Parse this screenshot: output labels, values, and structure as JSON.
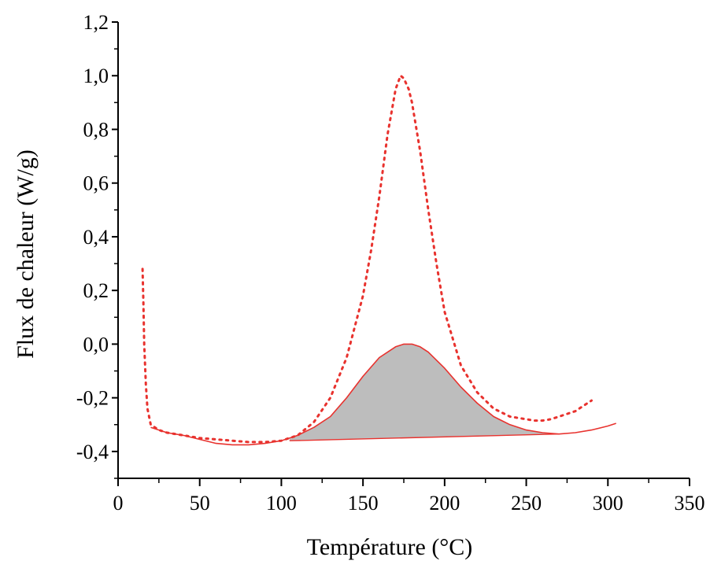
{
  "chart_data": {
    "type": "line",
    "title": "",
    "xlabel": "Température (°C)",
    "ylabel": "Flux de chaleur (W/g)",
    "xlim": [
      0,
      350
    ],
    "ylim": [
      -0.5,
      1.2
    ],
    "xticks": [
      0,
      50,
      100,
      150,
      200,
      250,
      300,
      350
    ],
    "xtick_labels": [
      "0",
      "50",
      "100",
      "150",
      "200",
      "250",
      "300",
      "350"
    ],
    "yticks": [
      -0.4,
      -0.2,
      0.0,
      0.2,
      0.4,
      0.6,
      0.8,
      1.0,
      1.2
    ],
    "ytick_labels": [
      "-0,4",
      "-0,2",
      "0,0",
      "0,2",
      "0,4",
      "0,6",
      "0,8",
      "1,0",
      "1,2"
    ],
    "grid": false,
    "legend": "none",
    "series": [
      {
        "style": "dotted",
        "color": "#e8322e",
        "x": [
          15,
          15.5,
          16,
          17,
          18,
          20,
          25,
          30,
          40,
          50,
          60,
          70,
          80,
          90,
          100,
          110,
          120,
          130,
          140,
          150,
          155,
          160,
          165,
          170,
          173,
          175,
          178,
          180,
          185,
          190,
          195,
          200,
          210,
          220,
          230,
          240,
          250,
          255,
          260,
          265,
          270,
          280,
          290
        ],
        "y": [
          0.28,
          0.15,
          0.0,
          -0.15,
          -0.24,
          -0.3,
          -0.32,
          -0.33,
          -0.34,
          -0.35,
          -0.355,
          -0.36,
          -0.365,
          -0.365,
          -0.36,
          -0.34,
          -0.29,
          -0.2,
          -0.05,
          0.18,
          0.35,
          0.55,
          0.78,
          0.95,
          1.0,
          0.99,
          0.95,
          0.9,
          0.72,
          0.5,
          0.3,
          0.12,
          -0.08,
          -0.18,
          -0.24,
          -0.27,
          -0.28,
          -0.285,
          -0.285,
          -0.28,
          -0.27,
          -0.25,
          -0.21
        ]
      },
      {
        "style": "solid",
        "color": "#e8322e",
        "x": [
          20,
          30,
          40,
          50,
          60,
          70,
          80,
          90,
          100,
          110,
          120,
          130,
          140,
          150,
          160,
          170,
          175,
          180,
          185,
          190,
          200,
          210,
          220,
          230,
          240,
          250,
          260,
          270,
          280,
          290,
          300,
          305
        ],
        "y": [
          -0.31,
          -0.33,
          -0.34,
          -0.355,
          -0.37,
          -0.375,
          -0.375,
          -0.37,
          -0.36,
          -0.34,
          -0.31,
          -0.27,
          -0.2,
          -0.12,
          -0.05,
          -0.01,
          0.0,
          0.0,
          -0.01,
          -0.03,
          -0.09,
          -0.16,
          -0.22,
          -0.27,
          -0.3,
          -0.32,
          -0.33,
          -0.335,
          -0.33,
          -0.32,
          -0.305,
          -0.295
        ]
      }
    ],
    "baseline": {
      "x": [
        105,
        270
      ],
      "y": [
        -0.36,
        -0.335
      ]
    },
    "shaded_area": {
      "color": "#bdbdbd",
      "x_range": [
        105,
        270
      ]
    }
  }
}
